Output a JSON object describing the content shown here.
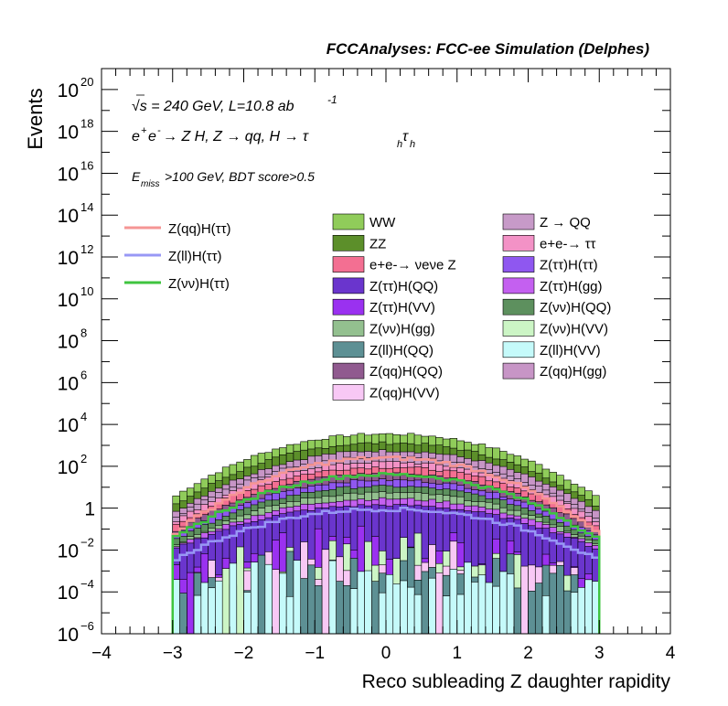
{
  "header": {
    "title": "FCCAnalyses: FCC-ee Simulation (Delphes)"
  },
  "annotations": {
    "line1_sqrt": "√s",
    "line1_rest": " = 240 GeV, L=10.8 ab",
    "line1_sup": "-1",
    "line2_a": "e",
    "line2_a_sup": "+",
    "line2_b": "e",
    "line2_b_sup": "-",
    "line2_c": " → Z H, Z  → qq, H  → τ",
    "line2_sub1": "h",
    "line2_d": "τ",
    "line2_sub2": "h",
    "line3_a": "E",
    "line3_sub": "miss",
    "line3_b": ">100 GeV, BDT score>0.5"
  },
  "chart_data": {
    "type": "area",
    "xlabel": "Reco subleading Z daughter rapidity",
    "ylabel": "Events",
    "xlim": [
      -4,
      4
    ],
    "ylim": [
      1e-06,
      1e+21
    ],
    "yscale": "log",
    "x_ticks": [
      "−4",
      "−3",
      "−2",
      "−1",
      "0",
      "1",
      "2",
      "3",
      "4"
    ],
    "y_ticks": [
      {
        "base": "10",
        "exp": "−6",
        "value": 1e-06
      },
      {
        "base": "10",
        "exp": "−4",
        "value": 0.0001
      },
      {
        "base": "10",
        "exp": "−2",
        "value": 0.01
      },
      {
        "base": "1",
        "exp": "",
        "value": 1
      },
      {
        "base": "10",
        "exp": "2",
        "value": 100.0
      },
      {
        "base": "10",
        "exp": "4",
        "value": 10000.0
      },
      {
        "base": "10",
        "exp": "6",
        "value": 1000000.0
      },
      {
        "base": "10",
        "exp": "8",
        "value": 100000000.0
      },
      {
        "base": "10",
        "exp": "10",
        "value": 10000000000.0
      },
      {
        "base": "10",
        "exp": "12",
        "value": 1000000000000.0
      },
      {
        "base": "10",
        "exp": "14",
        "value": 100000000000000.0
      },
      {
        "base": "10",
        "exp": "16",
        "value": 1e+16
      },
      {
        "base": "10",
        "exp": "18",
        "value": 1e+18
      },
      {
        "base": "10",
        "exp": "20",
        "value": 1e+20
      }
    ],
    "bins": {
      "start": -3.0,
      "end": 3.0,
      "count": 60
    },
    "stack_profile": "peak at rapidity 0, falling toward |y| = 3; stacked total ~3e3 at center, ~3 at edges",
    "stack_layers": [
      {
        "name": "WW",
        "color": "#90cc5a",
        "peak": 3500,
        "edge": 3.0
      },
      {
        "name": "ZZ",
        "color": "#5c8f2a",
        "peak": 1300,
        "edge": 1.1
      },
      {
        "name": "Z(qq)H(gg)",
        "color": "#c795c6",
        "peak": 560,
        "edge": 0.55
      },
      {
        "name": "Z → QQ",
        "color": "#c79ac8",
        "peak": 280,
        "edge": 0.3
      },
      {
        "name": "e+e- → ττ",
        "color": "#f392c6",
        "peak": 160,
        "edge": 0.2
      },
      {
        "name": "e+e-→ νeνe Z",
        "color": "#f36f92",
        "peak": 90,
        "edge": 0.12
      },
      {
        "name": "Z(qq)H(QQ)",
        "color": "#905a8f",
        "peak": 45,
        "edge": 0.07
      },
      {
        "name": "Z(ττ)H(ττ)",
        "color": "#8f57f0",
        "peak": 22,
        "edge": 0.04
      },
      {
        "name": "Z(νν)H(QQ)",
        "color": "#5d905e",
        "peak": 11,
        "edge": 0.025
      },
      {
        "name": "Z(νν)H(gg)",
        "color": "#93c08f",
        "peak": 5.5,
        "edge": 0.015
      },
      {
        "name": "Z(ττ)H(gg)",
        "color": "#c460f0",
        "peak": 2.8,
        "edge": 0.012
      },
      {
        "name": "Z(ττ)H(QQ)",
        "color": "#6a35cd",
        "peak": 1.4,
        "edge": 0.01
      },
      {
        "name": "Z(ττ)H(VV)",
        "color": "#9a31f0",
        "peak": 0.7,
        "edge": 0.009
      },
      {
        "name": "Z(νν)H(VV)",
        "color": "#ccf5c5",
        "peak": 0.3,
        "edge": 0.008
      },
      {
        "name": "Z(qq)H(VV)",
        "color": "#f8c8f5",
        "peak": 0.15,
        "edge": 0.008
      },
      {
        "name": "Z(ll)H(QQ)",
        "color": "#5d9094",
        "peak": 0.06,
        "edge": 0.007
      },
      {
        "name": "Z(ll)H(VV)",
        "color": "#c5fafa",
        "peak": 0.02,
        "edge": 0.006
      }
    ],
    "signal_lines": [
      {
        "name": "Z(qq)H(ττ)",
        "color": "#f59594",
        "peak": 250,
        "edge": 0.05
      },
      {
        "name": "Z(ll)H(ττ)",
        "color": "#9898f5",
        "peak": 0.9,
        "edge": 0.003
      },
      {
        "name": "Z(νν)H(ττ)",
        "color": "#3fc43f",
        "peak": 40,
        "edge": 0.03
      }
    ],
    "legend_left": [
      {
        "label": "Z(qq)H(ττ)",
        "color": "#f59594",
        "kind": "line"
      },
      {
        "label": "Z(ll)H(ττ)",
        "color": "#9898f5",
        "kind": "line"
      },
      {
        "label": "Z(νν)H(ττ)",
        "color": "#3fc43f",
        "kind": "line"
      }
    ],
    "legend_mid": [
      {
        "label": "WW",
        "color": "#90cc5a"
      },
      {
        "label": "ZZ",
        "color": "#5c8f2a"
      },
      {
        "label": "e+e-→ νeνe Z",
        "color": "#f36f92"
      },
      {
        "label": "Z(ττ)H(QQ)",
        "color": "#6a35cd"
      },
      {
        "label": "Z(ττ)H(VV)",
        "color": "#9a31f0"
      },
      {
        "label": "Z(νν)H(gg)",
        "color": "#93c08f"
      },
      {
        "label": "Z(ll)H(QQ)",
        "color": "#5d9094"
      },
      {
        "label": "Z(qq)H(QQ)",
        "color": "#905a8f"
      },
      {
        "label": "Z(qq)H(VV)",
        "color": "#f8c8f5"
      }
    ],
    "legend_right": [
      {
        "label": "Z → QQ",
        "color": "#c79ac8"
      },
      {
        "label": "e+e-→ ττ",
        "color": "#f392c6"
      },
      {
        "label": "Z(ττ)H(ττ)",
        "color": "#8f57f0"
      },
      {
        "label": "Z(ττ)H(gg)",
        "color": "#c460f0"
      },
      {
        "label": "Z(νν)H(QQ)",
        "color": "#5d905e"
      },
      {
        "label": "Z(νν)H(VV)",
        "color": "#ccf5c5"
      },
      {
        "label": "Z(ll)H(VV)",
        "color": "#c5fafa"
      },
      {
        "label": "Z(qq)H(gg)",
        "color": "#c795c6"
      }
    ]
  }
}
